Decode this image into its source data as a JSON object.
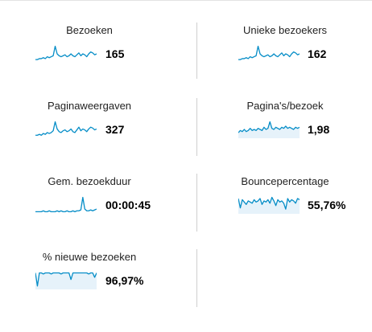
{
  "colors": {
    "line": "#058dc7",
    "fill": "#e6f2fa"
  },
  "metrics": [
    {
      "title": "Bezoeken",
      "value": "165",
      "kind": "line",
      "trend": [
        2,
        2,
        3,
        3,
        4,
        3,
        5,
        4,
        5,
        6,
        16,
        8,
        6,
        5,
        6,
        7,
        5,
        6,
        8,
        6,
        5,
        7,
        9,
        6,
        8,
        7,
        5,
        8,
        10,
        9,
        7,
        8
      ]
    },
    {
      "title": "Unieke bezoekers",
      "value": "162",
      "kind": "line",
      "trend": [
        2,
        2,
        3,
        3,
        4,
        3,
        5,
        4,
        5,
        6,
        16,
        8,
        6,
        5,
        6,
        7,
        5,
        6,
        8,
        6,
        5,
        7,
        9,
        6,
        8,
        7,
        5,
        8,
        10,
        9,
        7,
        8
      ]
    },
    {
      "title": "Paginaweergaven",
      "value": "327",
      "kind": "line",
      "trend": [
        2,
        2,
        3,
        2,
        4,
        3,
        5,
        4,
        5,
        7,
        17,
        9,
        6,
        5,
        7,
        8,
        6,
        7,
        9,
        6,
        5,
        8,
        11,
        7,
        9,
        8,
        6,
        9,
        11,
        10,
        8,
        9
      ]
    },
    {
      "title": "Pagina's/bezoek",
      "value": "1,98",
      "kind": "fill",
      "trend": [
        4,
        6,
        5,
        7,
        5,
        6,
        8,
        6,
        7,
        6,
        8,
        7,
        6,
        9,
        7,
        8,
        14,
        8,
        7,
        9,
        8,
        7,
        9,
        8,
        10,
        8,
        9,
        8,
        7,
        9,
        8,
        9
      ]
    },
    {
      "title": "Gem. bezoekduur",
      "value": "00:00:45",
      "kind": "line",
      "trend": [
        1,
        1,
        1,
        1,
        2,
        1,
        1,
        2,
        1,
        1,
        1,
        2,
        1,
        2,
        1,
        1,
        2,
        1,
        1,
        2,
        1,
        2,
        2,
        3,
        17,
        4,
        2,
        2,
        3,
        2,
        3,
        4
      ]
    },
    {
      "title": "Bouncepercentage",
      "value": "55,76%",
      "kind": "fill",
      "trend": [
        12,
        4,
        11,
        9,
        7,
        10,
        9,
        8,
        11,
        9,
        10,
        12,
        7,
        10,
        9,
        11,
        8,
        13,
        10,
        6,
        11,
        9,
        10,
        8,
        3,
        12,
        9,
        11,
        10,
        8,
        12,
        11
      ]
    },
    {
      "title": "% nieuwe bezoeken",
      "value": "96,97%",
      "kind": "fill",
      "trend": [
        14,
        2,
        14,
        14,
        13,
        14,
        14,
        14,
        13,
        14,
        14,
        14,
        14,
        13,
        14,
        14,
        14,
        14,
        8,
        14,
        14,
        14,
        14,
        14,
        14,
        14,
        14,
        13,
        14,
        14,
        10,
        14
      ]
    }
  ]
}
